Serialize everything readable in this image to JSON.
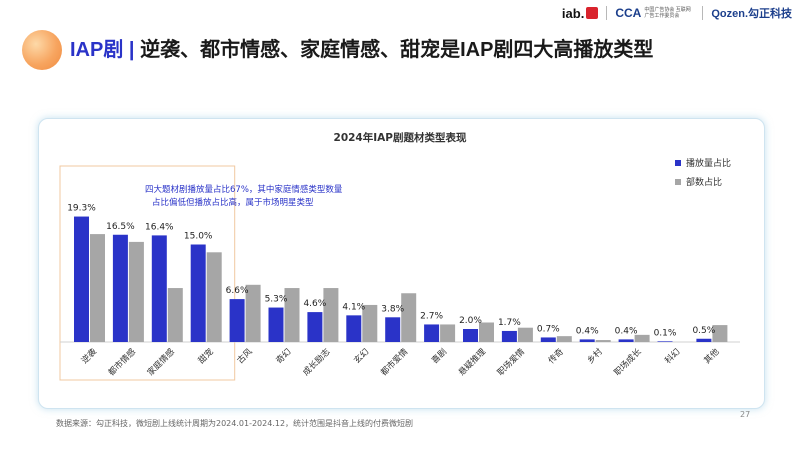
{
  "header": {
    "title_highlight": "IAP剧",
    "title_divider": "|",
    "title_rest": "逆袭、都市情感、家庭情感、甜宠是IAP剧四大高播放类型",
    "logos": {
      "iab": "iab.",
      "cca": "CCA",
      "cca_subtitle": "中国广告协会 互联网广告工作委员会",
      "ozen": "Qozen.勾正科技"
    }
  },
  "chart_data": {
    "type": "bar",
    "title": "2024年IAP剧题材类型表现",
    "categories": [
      "逆袭",
      "都市情感",
      "家庭情感",
      "甜宠",
      "古风",
      "奇幻",
      "成长励志",
      "玄幻",
      "都市爱情",
      "喜剧",
      "悬疑推理",
      "职场爱情",
      "传奇",
      "乡村",
      "职场成长",
      "科幻",
      "其他"
    ],
    "series": [
      {
        "name": "播放量占比",
        "color": "#2a33c8",
        "values": [
          19.3,
          16.5,
          16.4,
          15.0,
          6.6,
          5.3,
          4.6,
          4.1,
          3.8,
          2.7,
          2.0,
          1.7,
          0.7,
          0.4,
          0.4,
          0.1,
          0.5
        ],
        "labels": [
          "19.3%",
          "16.5%",
          "16.4%",
          "15.0%",
          "6.6%",
          "5.3%",
          "4.6%",
          "4.1%",
          "3.8%",
          "2.7%",
          "2.0%",
          "1.7%",
          "0.7%",
          "0.4%",
          "0.4%",
          "0.1%",
          "0.5%"
        ]
      },
      {
        "name": "部数占比",
        "color": "#a6a6a6",
        "values": [
          16.6,
          15.4,
          8.3,
          13.8,
          8.8,
          8.3,
          8.3,
          5.7,
          7.5,
          2.7,
          3.0,
          2.2,
          0.9,
          0.3,
          1.1,
          0.0,
          2.6
        ]
      }
    ],
    "annotation": [
      "四大题材剧播放量占比67%，其中家庭情感类型数量",
      "占比偏低但播放占比高，属于市场明星类型"
    ],
    "legend_position": "top-right",
    "grid": false,
    "ylim": [
      0,
      20
    ],
    "highlight_range": [
      0,
      3
    ],
    "highlight_color": "#f0c8a0"
  },
  "footer": {
    "source": "数据来源：勾正科技，微短剧上线统计周期为2024.01-2024.12，统计范围是抖音上线的付费微短剧",
    "page_number": "27"
  }
}
